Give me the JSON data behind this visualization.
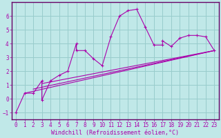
{
  "xlabel": "Windchill (Refroidissement éolien,°C)",
  "background_color": "#c0e8e8",
  "grid_color": "#98cccc",
  "line_color": "#aa00aa",
  "spine_color": "#660066",
  "xlim": [
    -0.5,
    23.5
  ],
  "ylim": [
    -1.5,
    7.0
  ],
  "xticks": [
    0,
    1,
    2,
    3,
    4,
    5,
    6,
    7,
    8,
    9,
    10,
    11,
    12,
    13,
    14,
    15,
    16,
    17,
    18,
    19,
    20,
    21,
    22,
    23
  ],
  "yticks": [
    -1,
    0,
    1,
    2,
    3,
    4,
    5,
    6
  ],
  "series1_x": [
    0,
    1,
    2,
    3,
    3,
    4,
    5,
    6,
    7,
    7,
    8,
    9,
    10,
    11,
    12,
    13,
    14,
    15,
    16,
    17,
    17,
    18,
    19,
    20,
    21,
    22,
    23
  ],
  "series1_y": [
    -1,
    0.4,
    0.4,
    1.3,
    -0.1,
    1.3,
    1.7,
    2.0,
    4.0,
    3.5,
    3.5,
    2.9,
    2.4,
    4.5,
    6.0,
    6.4,
    6.5,
    5.2,
    3.9,
    3.9,
    4.2,
    3.8,
    4.4,
    4.6,
    4.6,
    4.5,
    3.5
  ],
  "series2_x": [
    1,
    23
  ],
  "series2_y": [
    0.4,
    3.5
  ],
  "series3_x": [
    2,
    23
  ],
  "series3_y": [
    0.7,
    3.5
  ],
  "series4_x": [
    3,
    23
  ],
  "series4_y": [
    1.1,
    3.5
  ],
  "xlabel_fontsize": 6.0,
  "tick_fontsize": 5.5
}
